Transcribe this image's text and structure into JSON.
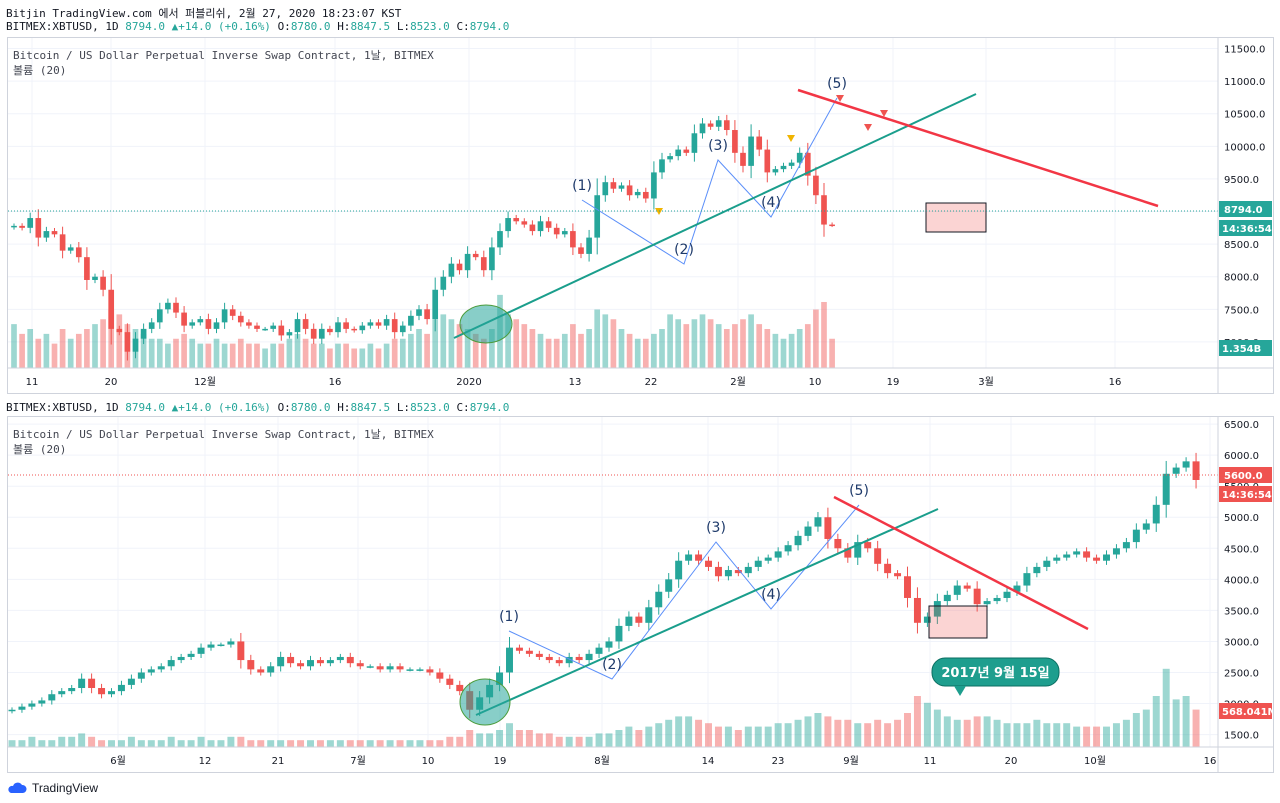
{
  "header": {
    "line1": "Bitjin TradingView.com 에서 퍼블리쉬, 2월 27, 2020 18:23:07 KST",
    "symbol": "BITMEX:XBTUSD, 1D",
    "price": "8794.0",
    "change_arrow": "▲",
    "change": "+14.0 (+0.16%)",
    "o_label": "O:",
    "o": "8780.0",
    "h_label": "H:",
    "h": "8847.5",
    "l_label": "L:",
    "l": "8523.0",
    "c_label": "C:",
    "c": "8794.0"
  },
  "colors": {
    "up": "#26a69a",
    "down": "#ef5350",
    "trend": "#1a9e8c",
    "red_line": "#f23645",
    "axis_text": "#131722",
    "grid": "#f0f3fa"
  },
  "footer": {
    "logo": "TradingView",
    "logo_icon": "cloud-logo-icon"
  },
  "chart_data": [
    {
      "type": "candlestick",
      "title": "Bitcoin / US Dollar Perpetual Inverse Swap Contract, 1날, BITMEX",
      "volume_label": "볼륨 (20)",
      "y_ticks": [
        7000,
        7500,
        8000,
        8500,
        9000,
        9500,
        10000,
        10500,
        11000,
        11500
      ],
      "y_tick_labels": [
        "7000.0",
        "7500.0",
        "8000.0",
        "8500.0",
        "9000.0",
        "9500.0",
        "10000.0",
        "10500.0",
        "11000.0",
        "11500.0"
      ],
      "ylim": [
        6600,
        11600
      ],
      "x_labels": [
        "11",
        "20",
        "12월",
        "16",
        "2020",
        "13",
        "22",
        "2월",
        "10",
        "19",
        "3월",
        "16"
      ],
      "last_price_label": "8794.0",
      "countdown_label": "14:36:54",
      "volume_value_label": "1.354B",
      "wave_labels": [
        "(1)",
        "(2)",
        "(3)",
        "(4)",
        "(5)"
      ],
      "closes": [
        8780,
        8750,
        8900,
        8600,
        8700,
        8650,
        8400,
        8450,
        8300,
        7950,
        8000,
        7800,
        7200,
        7150,
        6850,
        7050,
        7200,
        7300,
        7500,
        7600,
        7450,
        7250,
        7300,
        7350,
        7200,
        7300,
        7500,
        7400,
        7300,
        7250,
        7200,
        7200,
        7250,
        7100,
        7150,
        7350,
        7200,
        7050,
        7200,
        7150,
        7300,
        7200,
        7180,
        7250,
        7300,
        7250,
        7350,
        7150,
        7250,
        7400,
        7500,
        7350,
        7800,
        8000,
        8200,
        8100,
        8350,
        8300,
        8100,
        8450,
        8700,
        8900,
        8850,
        8800,
        8700,
        8850,
        8750,
        8650,
        8700,
        8450,
        8350,
        8600,
        9250,
        9450,
        9350,
        9400,
        9250,
        9300,
        9200,
        9600,
        9800,
        9850,
        9950,
        9900,
        10200,
        10350,
        10300,
        10400,
        10250,
        9900,
        9700,
        10150,
        9950,
        9600,
        9650,
        9700,
        9750,
        9900,
        9550,
        9250,
        8800,
        8794
      ],
      "volumes": [
        0.9,
        0.7,
        0.8,
        0.6,
        0.7,
        0.5,
        0.8,
        0.6,
        0.7,
        0.8,
        0.9,
        1.0,
        1.2,
        1.1,
        0.9,
        0.8,
        0.7,
        0.6,
        0.6,
        0.5,
        0.6,
        0.7,
        0.6,
        0.5,
        0.5,
        0.6,
        0.5,
        0.5,
        0.6,
        0.5,
        0.5,
        0.4,
        0.5,
        0.5,
        0.6,
        0.7,
        0.6,
        0.5,
        0.5,
        0.4,
        0.5,
        0.5,
        0.4,
        0.4,
        0.5,
        0.4,
        0.5,
        0.6,
        0.6,
        0.7,
        0.8,
        0.7,
        1.0,
        1.1,
        1.0,
        0.9,
        0.8,
        0.7,
        0.6,
        0.8,
        1.5,
        1.1,
        1.0,
        0.9,
        0.8,
        0.7,
        0.6,
        0.6,
        0.7,
        0.9,
        0.7,
        0.8,
        1.2,
        1.1,
        1.0,
        0.8,
        0.7,
        0.6,
        0.6,
        0.7,
        0.8,
        1.1,
        1.0,
        0.9,
        1.0,
        1.1,
        1.0,
        0.9,
        0.8,
        0.9,
        1.0,
        1.1,
        0.9,
        0.8,
        0.7,
        0.6,
        0.7,
        0.8,
        0.9,
        1.2,
        1.354,
        0.6
      ]
    },
    {
      "type": "candlestick",
      "title": "Bitcoin / US Dollar Perpetual Inverse Swap Contract, 1날, BITMEX",
      "volume_label": "볼륨 (20)",
      "header_symbol": "BITMEX:XBTUSD, 1D",
      "y_ticks": [
        1500,
        2000,
        2500,
        3000,
        3500,
        4000,
        4500,
        5000,
        5500,
        6000,
        6500
      ],
      "y_tick_labels": [
        "1500.0",
        "2000.0",
        "2500.0",
        "3000.0",
        "3500.0",
        "4000.0",
        "4500.0",
        "5000.0",
        "5500.0",
        "6000.0",
        "6500.0"
      ],
      "ylim": [
        1300,
        6550
      ],
      "x_labels": [
        "6월",
        "12",
        "21",
        "7월",
        "10",
        "19",
        "8월",
        "14",
        "23",
        "9월",
        "11",
        "20",
        "10월",
        "16"
      ],
      "last_price_label": "5600.0",
      "countdown_label": "14:36:54",
      "volume_value_label": "568.041M",
      "callout": "2017년 9월 15일",
      "wave_labels": [
        "(1)",
        "(2)",
        "(3)",
        "(4)",
        "(5)"
      ],
      "closes": [
        1900,
        1950,
        2000,
        2050,
        2150,
        2200,
        2250,
        2400,
        2250,
        2150,
        2200,
        2300,
        2400,
        2500,
        2550,
        2600,
        2700,
        2750,
        2800,
        2900,
        2950,
        2950,
        3000,
        2700,
        2550,
        2500,
        2600,
        2750,
        2650,
        2600,
        2700,
        2650,
        2700,
        2750,
        2650,
        2600,
        2600,
        2550,
        2600,
        2550,
        2550,
        2550,
        2500,
        2400,
        2300,
        2200,
        1900,
        2100,
        2300,
        2500,
        2900,
        2850,
        2800,
        2750,
        2700,
        2650,
        2750,
        2700,
        2800,
        2900,
        3000,
        3250,
        3400,
        3300,
        3550,
        3800,
        4000,
        4300,
        4400,
        4300,
        4200,
        4050,
        4150,
        4100,
        4200,
        4300,
        4350,
        4450,
        4550,
        4700,
        4850,
        5000,
        4650,
        4500,
        4350,
        4600,
        4500,
        4250,
        4100,
        4050,
        3700,
        3300,
        3400,
        3650,
        3750,
        3900,
        3850,
        3600,
        3650,
        3700,
        3800,
        3900,
        4100,
        4200,
        4300,
        4350,
        4400,
        4450,
        4350,
        4300,
        4400,
        4500,
        4600,
        4800,
        4900,
        5200,
        5700,
        5800,
        5900,
        5600
      ],
      "volumes": [
        0.2,
        0.2,
        0.3,
        0.2,
        0.2,
        0.3,
        0.3,
        0.4,
        0.3,
        0.2,
        0.2,
        0.2,
        0.3,
        0.2,
        0.2,
        0.2,
        0.3,
        0.2,
        0.2,
        0.3,
        0.2,
        0.2,
        0.3,
        0.3,
        0.2,
        0.2,
        0.2,
        0.2,
        0.2,
        0.2,
        0.2,
        0.2,
        0.2,
        0.2,
        0.2,
        0.2,
        0.2,
        0.2,
        0.2,
        0.2,
        0.2,
        0.2,
        0.2,
        0.2,
        0.3,
        0.3,
        0.5,
        0.4,
        0.4,
        0.5,
        0.7,
        0.5,
        0.5,
        0.4,
        0.4,
        0.3,
        0.3,
        0.3,
        0.3,
        0.4,
        0.4,
        0.5,
        0.6,
        0.5,
        0.6,
        0.7,
        0.8,
        0.9,
        0.9,
        0.8,
        0.7,
        0.6,
        0.6,
        0.5,
        0.6,
        0.6,
        0.6,
        0.7,
        0.7,
        0.8,
        0.9,
        1.0,
        0.9,
        0.8,
        0.8,
        0.7,
        0.7,
        0.8,
        0.7,
        0.8,
        1.0,
        1.5,
        1.3,
        1.1,
        0.9,
        0.8,
        0.8,
        0.9,
        0.9,
        0.8,
        0.7,
        0.7,
        0.7,
        0.8,
        0.7,
        0.7,
        0.7,
        0.6,
        0.6,
        0.6,
        0.6,
        0.7,
        0.8,
        1.0,
        1.1,
        1.5,
        2.3,
        1.4,
        1.5,
        1.1
      ]
    }
  ]
}
